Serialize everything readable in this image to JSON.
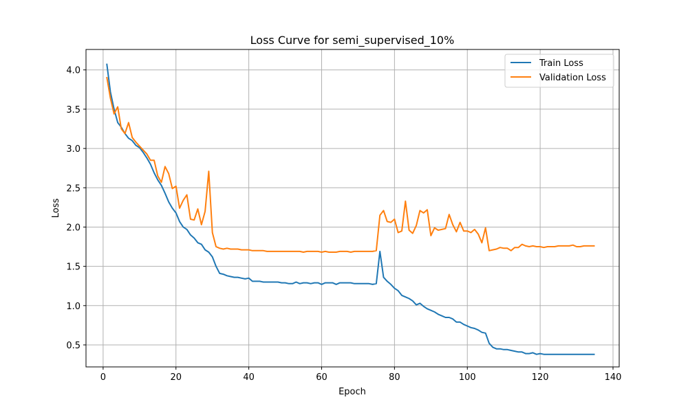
{
  "chart_data": {
    "type": "line",
    "title": "Loss Curve for semi_supervised_10%",
    "xlabel": "Epoch",
    "ylabel": "Loss",
    "xlim": [
      -4.7,
      141.7
    ],
    "ylim": [
      0.22,
      4.26
    ],
    "xticks": [
      0,
      20,
      40,
      60,
      80,
      100,
      120,
      140
    ],
    "yticks": [
      0.5,
      1.0,
      1.5,
      2.0,
      2.5,
      3.0,
      3.5,
      4.0
    ],
    "xtick_labels": [
      "0",
      "20",
      "40",
      "60",
      "80",
      "100",
      "120",
      "140"
    ],
    "ytick_labels": [
      "0.5",
      "1.0",
      "1.5",
      "2.0",
      "2.5",
      "3.0",
      "3.5",
      "4.0"
    ],
    "grid": true,
    "legend_position": "top-right",
    "series": [
      {
        "name": "Train Loss",
        "color": "#1f77b4",
        "x": [
          1,
          2,
          3,
          4,
          5,
          6,
          7,
          8,
          9,
          10,
          11,
          12,
          13,
          14,
          15,
          16,
          17,
          18,
          19,
          20,
          21,
          22,
          23,
          24,
          25,
          26,
          27,
          28,
          29,
          30,
          31,
          32,
          33,
          34,
          35,
          36,
          37,
          38,
          39,
          40,
          41,
          42,
          43,
          44,
          45,
          46,
          47,
          48,
          49,
          50,
          51,
          52,
          53,
          54,
          55,
          56,
          57,
          58,
          59,
          60,
          61,
          62,
          63,
          64,
          65,
          66,
          67,
          68,
          69,
          70,
          71,
          72,
          73,
          74,
          75,
          76,
          77,
          78,
          79,
          80,
          81,
          82,
          83,
          84,
          85,
          86,
          87,
          88,
          89,
          90,
          91,
          92,
          93,
          94,
          95,
          96,
          97,
          98,
          99,
          100,
          101,
          102,
          103,
          104,
          105,
          106,
          107,
          108,
          109,
          110,
          111,
          112,
          113,
          114,
          115,
          116,
          117,
          118,
          119,
          120,
          121,
          122,
          123,
          124,
          125,
          126,
          127,
          128,
          129,
          130,
          131,
          132,
          133,
          134,
          135
        ],
        "values": [
          4.08,
          3.72,
          3.5,
          3.33,
          3.27,
          3.19,
          3.13,
          3.1,
          3.04,
          3.01,
          2.95,
          2.88,
          2.8,
          2.69,
          2.6,
          2.53,
          2.43,
          2.32,
          2.24,
          2.18,
          2.07,
          2.0,
          1.97,
          1.9,
          1.86,
          1.8,
          1.78,
          1.71,
          1.68,
          1.62,
          1.5,
          1.41,
          1.4,
          1.38,
          1.37,
          1.36,
          1.36,
          1.35,
          1.34,
          1.35,
          1.31,
          1.31,
          1.31,
          1.3,
          1.3,
          1.3,
          1.3,
          1.3,
          1.29,
          1.29,
          1.28,
          1.28,
          1.3,
          1.28,
          1.29,
          1.29,
          1.28,
          1.29,
          1.29,
          1.27,
          1.29,
          1.29,
          1.29,
          1.27,
          1.29,
          1.29,
          1.29,
          1.29,
          1.28,
          1.28,
          1.28,
          1.28,
          1.28,
          1.27,
          1.28,
          1.69,
          1.36,
          1.31,
          1.27,
          1.22,
          1.19,
          1.13,
          1.11,
          1.09,
          1.06,
          1.01,
          1.03,
          0.99,
          0.96,
          0.94,
          0.92,
          0.89,
          0.87,
          0.85,
          0.85,
          0.83,
          0.79,
          0.79,
          0.76,
          0.74,
          0.72,
          0.71,
          0.69,
          0.66,
          0.65,
          0.52,
          0.47,
          0.45,
          0.45,
          0.44,
          0.44,
          0.43,
          0.42,
          0.41,
          0.41,
          0.39,
          0.39,
          0.4,
          0.38,
          0.39,
          0.38,
          0.38,
          0.38,
          0.38,
          0.38,
          0.38,
          0.38,
          0.38,
          0.38,
          0.38,
          0.38,
          0.38,
          0.38,
          0.38,
          0.38
        ]
      },
      {
        "name": "Validation Loss",
        "color": "#ff7f0e",
        "x": [
          1,
          2,
          3,
          4,
          5,
          6,
          7,
          8,
          9,
          10,
          11,
          12,
          13,
          14,
          15,
          16,
          17,
          18,
          19,
          20,
          21,
          22,
          23,
          24,
          25,
          26,
          27,
          28,
          29,
          30,
          31,
          32,
          33,
          34,
          35,
          36,
          37,
          38,
          39,
          40,
          41,
          42,
          43,
          44,
          45,
          46,
          47,
          48,
          49,
          50,
          51,
          52,
          53,
          54,
          55,
          56,
          57,
          58,
          59,
          60,
          61,
          62,
          63,
          64,
          65,
          66,
          67,
          68,
          69,
          70,
          71,
          72,
          73,
          74,
          75,
          76,
          77,
          78,
          79,
          80,
          81,
          82,
          83,
          84,
          85,
          86,
          87,
          88,
          89,
          90,
          91,
          92,
          93,
          94,
          95,
          96,
          97,
          98,
          99,
          100,
          101,
          102,
          103,
          104,
          105,
          106,
          107,
          108,
          109,
          110,
          111,
          112,
          113,
          114,
          115,
          116,
          117,
          118,
          119,
          120,
          121,
          122,
          123,
          124,
          125,
          126,
          127,
          128,
          129,
          130,
          131,
          132,
          133,
          134,
          135
        ],
        "values": [
          3.91,
          3.64,
          3.44,
          3.53,
          3.25,
          3.19,
          3.33,
          3.14,
          3.08,
          3.03,
          2.98,
          2.93,
          2.85,
          2.85,
          2.65,
          2.57,
          2.77,
          2.68,
          2.49,
          2.52,
          2.24,
          2.34,
          2.41,
          2.1,
          2.09,
          2.23,
          2.03,
          2.2,
          2.71,
          1.93,
          1.75,
          1.73,
          1.72,
          1.73,
          1.72,
          1.72,
          1.72,
          1.71,
          1.71,
          1.71,
          1.7,
          1.7,
          1.7,
          1.7,
          1.69,
          1.69,
          1.69,
          1.69,
          1.69,
          1.69,
          1.69,
          1.69,
          1.69,
          1.69,
          1.68,
          1.69,
          1.69,
          1.69,
          1.69,
          1.68,
          1.69,
          1.68,
          1.68,
          1.68,
          1.69,
          1.69,
          1.69,
          1.68,
          1.69,
          1.69,
          1.69,
          1.69,
          1.69,
          1.69,
          1.7,
          2.15,
          2.21,
          2.07,
          2.06,
          2.1,
          1.93,
          1.95,
          2.33,
          1.96,
          1.92,
          2.02,
          2.21,
          2.18,
          2.22,
          1.89,
          1.99,
          1.96,
          1.97,
          1.98,
          2.16,
          2.03,
          1.94,
          2.06,
          1.95,
          1.95,
          1.93,
          1.97,
          1.91,
          1.8,
          1.99,
          1.7,
          1.71,
          1.72,
          1.74,
          1.73,
          1.73,
          1.7,
          1.74,
          1.74,
          1.78,
          1.76,
          1.75,
          1.76,
          1.75,
          1.75,
          1.74,
          1.75,
          1.75,
          1.75,
          1.76,
          1.76,
          1.76,
          1.76,
          1.77,
          1.75,
          1.75,
          1.76,
          1.76,
          1.76,
          1.76
        ]
      }
    ]
  }
}
